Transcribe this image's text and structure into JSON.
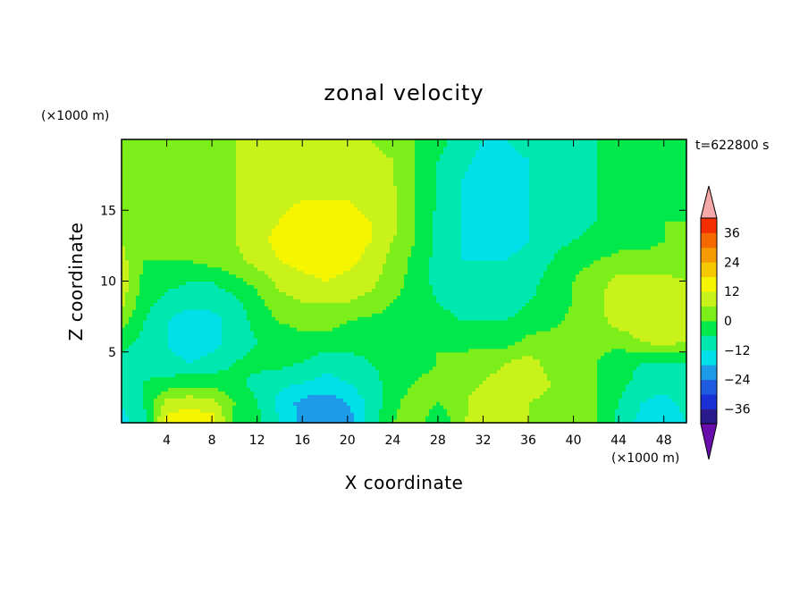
{
  "chart_data": {
    "type": "heatmap",
    "title": "zonal velocity",
    "xlabel": "X coordinate",
    "ylabel": "Z coordinate",
    "x_unit": "(×1000 m)",
    "z_unit": "(×1000 m)",
    "time_label": "t=622800 s",
    "xlim": [
      0,
      50
    ],
    "ylim": [
      0,
      20
    ],
    "x_ticks": [
      4,
      8,
      12,
      16,
      20,
      24,
      28,
      32,
      36,
      40,
      44,
      48
    ],
    "y_ticks": [
      5,
      10,
      15
    ],
    "colorbar": {
      "levels": [
        -42,
        -36,
        -30,
        -24,
        -18,
        -12,
        -6,
        0,
        6,
        12,
        18,
        24,
        30,
        36,
        42
      ],
      "tick_values": [
        36,
        24,
        12,
        0,
        -12,
        -24,
        -36
      ],
      "colors": [
        "#6a0dad",
        "#2a1a8c",
        "#1a2fd6",
        "#1e5be0",
        "#1e9be8",
        "#00e0e8",
        "#00e8b0",
        "#00e84a",
        "#7cef1a",
        "#c8f21a",
        "#f5f500",
        "#f5c800",
        "#f59a00",
        "#f56a00",
        "#f52e00",
        "#e01010",
        "#f5a8a8"
      ],
      "extend": "both"
    },
    "z": [
      [
        -14,
        -8,
        15,
        18,
        16,
        -2,
        -4,
        -12,
        -20,
        -24,
        -22,
        -10,
        0,
        4,
        -6,
        4,
        12,
        10,
        6,
        4,
        2,
        0,
        -8,
        -14,
        -18,
        -12
      ],
      [
        -12,
        -6,
        8,
        10,
        8,
        0,
        -6,
        -14,
        -20,
        -22,
        -18,
        -10,
        -2,
        4,
        0,
        4,
        10,
        8,
        6,
        4,
        2,
        0,
        -6,
        -12,
        -14,
        -10
      ],
      [
        -10,
        -6,
        -4,
        -2,
        -2,
        -4,
        -8,
        -10,
        -12,
        -14,
        -12,
        -8,
        -4,
        0,
        2,
        4,
        6,
        8,
        10,
        6,
        4,
        0,
        -4,
        -8,
        -10,
        -8
      ],
      [
        -8,
        -8,
        -10,
        -12,
        -10,
        -6,
        -4,
        -4,
        -6,
        -10,
        -8,
        -6,
        -4,
        -2,
        0,
        2,
        4,
        6,
        8,
        4,
        2,
        0,
        -4,
        -6,
        -6,
        -6
      ],
      [
        -4,
        -8,
        -12,
        -16,
        -14,
        -10,
        -6,
        -4,
        -2,
        -2,
        -4,
        -4,
        -2,
        -2,
        0,
        -2,
        -2,
        -2,
        2,
        4,
        4,
        2,
        2,
        6,
        8,
        6
      ],
      [
        2,
        -6,
        -12,
        -16,
        -14,
        -10,
        -4,
        0,
        2,
        2,
        0,
        -2,
        -2,
        -2,
        -4,
        -6,
        -6,
        -6,
        -4,
        -2,
        2,
        4,
        8,
        10,
        12,
        8
      ],
      [
        8,
        -4,
        -8,
        -10,
        -10,
        -8,
        -2,
        4,
        6,
        6,
        6,
        4,
        0,
        -2,
        -6,
        -8,
        -8,
        -8,
        -6,
        -4,
        0,
        4,
        10,
        12,
        12,
        10
      ],
      [
        10,
        -2,
        -4,
        -6,
        -6,
        -2,
        2,
        8,
        10,
        12,
        10,
        8,
        2,
        -2,
        -8,
        -10,
        -10,
        -10,
        -8,
        -4,
        0,
        4,
        8,
        8,
        8,
        6
      ],
      [
        8,
        0,
        0,
        0,
        2,
        4,
        8,
        12,
        14,
        16,
        14,
        10,
        4,
        -2,
        -8,
        -12,
        -12,
        -12,
        -10,
        -6,
        -2,
        0,
        2,
        2,
        2,
        2
      ],
      [
        6,
        2,
        2,
        2,
        4,
        6,
        10,
        14,
        18,
        18,
        16,
        12,
        6,
        0,
        -8,
        -12,
        -14,
        -14,
        -12,
        -8,
        -6,
        -4,
        -2,
        -2,
        0,
        0
      ],
      [
        4,
        2,
        2,
        2,
        4,
        6,
        10,
        12,
        16,
        16,
        14,
        12,
        8,
        0,
        -8,
        -12,
        -16,
        -14,
        -12,
        -10,
        -8,
        -6,
        -4,
        -2,
        0,
        0
      ],
      [
        4,
        2,
        2,
        2,
        2,
        6,
        8,
        10,
        12,
        12,
        12,
        10,
        8,
        0,
        -6,
        -12,
        -14,
        -14,
        -12,
        -10,
        -8,
        -6,
        -4,
        -4,
        -2,
        0
      ],
      [
        2,
        0,
        2,
        2,
        2,
        6,
        8,
        10,
        10,
        10,
        10,
        10,
        6,
        0,
        -6,
        -12,
        -14,
        -14,
        -12,
        -10,
        -8,
        -6,
        -4,
        -4,
        -2,
        0
      ],
      [
        0,
        0,
        0,
        2,
        4,
        6,
        8,
        8,
        8,
        8,
        8,
        8,
        6,
        0,
        -6,
        -10,
        -14,
        -14,
        -12,
        -10,
        -8,
        -6,
        -4,
        -4,
        -4,
        -2
      ],
      [
        0,
        0,
        0,
        2,
        4,
        6,
        6,
        6,
        6,
        6,
        6,
        6,
        4,
        0,
        -4,
        -8,
        -12,
        -12,
        -10,
        -8,
        -6,
        -6,
        -4,
        -4,
        -2,
        -2
      ]
    ]
  }
}
